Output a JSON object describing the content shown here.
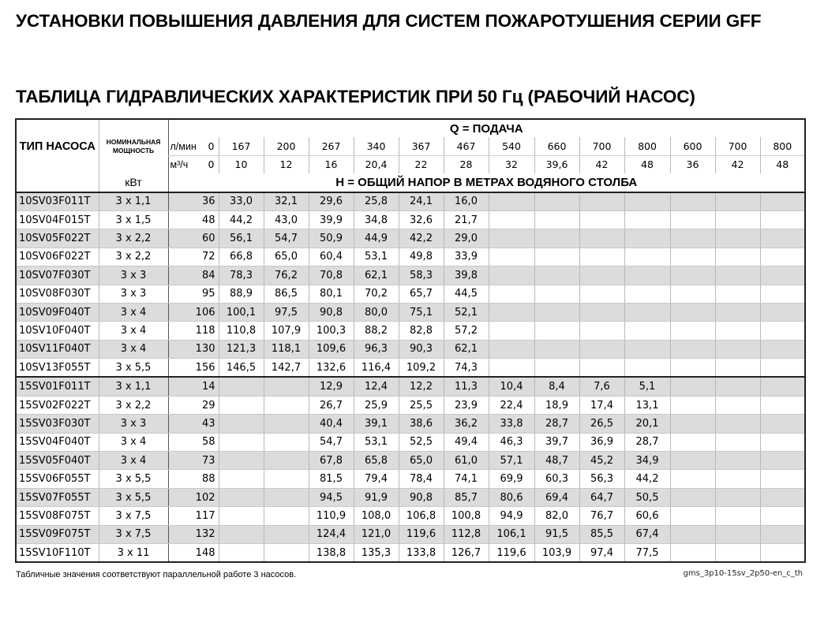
{
  "title": "УСТАНОВКИ ПОВЫШЕНИЯ ДАВЛЕНИЯ ДЛЯ СИСТЕМ ПОЖАРОТУШЕНИЯ СЕРИИ GFF",
  "subtitle": "ТАБЛИЦА ГИДРАВЛИЧЕСКИХ ХАРАКТЕРИСТИК ПРИ 50 Гц (РАБОЧИЙ НАСОС)",
  "header": {
    "type_label": "ТИП НАСОСА",
    "power_label": "НОМИНАЛЬНАЯ МОЩНОСТЬ",
    "power_unit": "кВт",
    "q_label": "Q = ПОДАЧА",
    "h_label": "H = ОБЩИЙ НАПОР В МЕТРАХ ВОДЯНОГО СТОЛБА",
    "lmin_unit": "л/мин",
    "m3h_unit": "м³/ч",
    "lmin": [
      "0",
      "167",
      "200",
      "267",
      "340",
      "367",
      "467",
      "540",
      "660",
      "700",
      "800",
      "600",
      "700",
      "800"
    ],
    "m3h": [
      "0",
      "10",
      "12",
      "16",
      "20,4",
      "22",
      "28",
      "32",
      "39,6",
      "42",
      "48",
      "36",
      "42",
      "48"
    ]
  },
  "rows": [
    {
      "type": "10SV03F011T",
      "power": "3 x 1,1",
      "values": [
        "36",
        "33,0",
        "32,1",
        "29,6",
        "25,8",
        "24,1",
        "16,0",
        "",
        "",
        "",
        "",
        "",
        "",
        ""
      ]
    },
    {
      "type": "10SV04F015T",
      "power": "3 x 1,5",
      "values": [
        "48",
        "44,2",
        "43,0",
        "39,9",
        "34,8",
        "32,6",
        "21,7",
        "",
        "",
        "",
        "",
        "",
        "",
        ""
      ]
    },
    {
      "type": "10SV05F022T",
      "power": "3 x 2,2",
      "values": [
        "60",
        "56,1",
        "54,7",
        "50,9",
        "44,9",
        "42,2",
        "29,0",
        "",
        "",
        "",
        "",
        "",
        "",
        ""
      ]
    },
    {
      "type": "10SV06F022T",
      "power": "3 x 2,2",
      "values": [
        "72",
        "66,8",
        "65,0",
        "60,4",
        "53,1",
        "49,8",
        "33,9",
        "",
        "",
        "",
        "",
        "",
        "",
        ""
      ]
    },
    {
      "type": "10SV07F030T",
      "power": "3 x 3",
      "values": [
        "84",
        "78,3",
        "76,2",
        "70,8",
        "62,1",
        "58,3",
        "39,8",
        "",
        "",
        "",
        "",
        "",
        "",
        ""
      ]
    },
    {
      "type": "10SV08F030T",
      "power": "3 x 3",
      "values": [
        "95",
        "88,9",
        "86,5",
        "80,1",
        "70,2",
        "65,7",
        "44,5",
        "",
        "",
        "",
        "",
        "",
        "",
        ""
      ]
    },
    {
      "type": "10SV09F040T",
      "power": "3 x 4",
      "values": [
        "106",
        "100,1",
        "97,5",
        "90,8",
        "80,0",
        "75,1",
        "52,1",
        "",
        "",
        "",
        "",
        "",
        "",
        ""
      ]
    },
    {
      "type": "10SV10F040T",
      "power": "3 x 4",
      "values": [
        "118",
        "110,8",
        "107,9",
        "100,3",
        "88,2",
        "82,8",
        "57,2",
        "",
        "",
        "",
        "",
        "",
        "",
        ""
      ]
    },
    {
      "type": "10SV11F040T",
      "power": "3 x 4",
      "values": [
        "130",
        "121,3",
        "118,1",
        "109,6",
        "96,3",
        "90,3",
        "62,1",
        "",
        "",
        "",
        "",
        "",
        "",
        ""
      ]
    },
    {
      "type": "10SV13F055T",
      "power": "3 x 5,5",
      "values": [
        "156",
        "146,5",
        "142,7",
        "132,6",
        "116,4",
        "109,2",
        "74,3",
        "",
        "",
        "",
        "",
        "",
        "",
        ""
      ]
    },
    {
      "type": "15SV01F011T",
      "power": "3 x 1,1",
      "values": [
        "14",
        "",
        "",
        "12,9",
        "12,4",
        "12,2",
        "11,3",
        "10,4",
        "8,4",
        "7,6",
        "5,1",
        "",
        "",
        ""
      ]
    },
    {
      "type": "15SV02F022T",
      "power": "3 x 2,2",
      "values": [
        "29",
        "",
        "",
        "26,7",
        "25,9",
        "25,5",
        "23,9",
        "22,4",
        "18,9",
        "17,4",
        "13,1",
        "",
        "",
        ""
      ]
    },
    {
      "type": "15SV03F030T",
      "power": "3 x 3",
      "values": [
        "43",
        "",
        "",
        "40,4",
        "39,1",
        "38,6",
        "36,2",
        "33,8",
        "28,7",
        "26,5",
        "20,1",
        "",
        "",
        ""
      ]
    },
    {
      "type": "15SV04F040T",
      "power": "3 x 4",
      "values": [
        "58",
        "",
        "",
        "54,7",
        "53,1",
        "52,5",
        "49,4",
        "46,3",
        "39,7",
        "36,9",
        "28,7",
        "",
        "",
        ""
      ]
    },
    {
      "type": "15SV05F040T",
      "power": "3 x 4",
      "values": [
        "73",
        "",
        "",
        "67,8",
        "65,8",
        "65,0",
        "61,0",
        "57,1",
        "48,7",
        "45,2",
        "34,9",
        "",
        "",
        ""
      ]
    },
    {
      "type": "15SV06F055T",
      "power": "3 x 5,5",
      "values": [
        "88",
        "",
        "",
        "81,5",
        "79,4",
        "78,4",
        "74,1",
        "69,9",
        "60,3",
        "56,3",
        "44,2",
        "",
        "",
        ""
      ]
    },
    {
      "type": "15SV07F055T",
      "power": "3 x 5,5",
      "values": [
        "102",
        "",
        "",
        "94,5",
        "91,9",
        "90,8",
        "85,7",
        "80,6",
        "69,4",
        "64,7",
        "50,5",
        "",
        "",
        ""
      ]
    },
    {
      "type": "15SV08F075T",
      "power": "3 x 7,5",
      "values": [
        "117",
        "",
        "",
        "110,9",
        "108,0",
        "106,8",
        "100,8",
        "94,9",
        "82,0",
        "76,7",
        "60,6",
        "",
        "",
        ""
      ]
    },
    {
      "type": "15SV09F075T",
      "power": "3 x 7,5",
      "values": [
        "132",
        "",
        "",
        "124,4",
        "121,0",
        "119,6",
        "112,8",
        "106,1",
        "91,5",
        "85,5",
        "67,4",
        "",
        "",
        ""
      ]
    },
    {
      "type": "15SV10F110T",
      "power": "3 x 11",
      "values": [
        "148",
        "",
        "",
        "138,8",
        "135,3",
        "133,8",
        "126,7",
        "119,6",
        "103,9",
        "97,4",
        "77,5",
        "",
        "",
        ""
      ]
    }
  ],
  "footnote": "Табличные значения соответствуют параллельной работе 3 насосов.",
  "doc_code": "gms_3p10-15sv_2p50-en_c_th",
  "colors": {
    "stripe": "#dcdcdc",
    "border": "#222222"
  }
}
